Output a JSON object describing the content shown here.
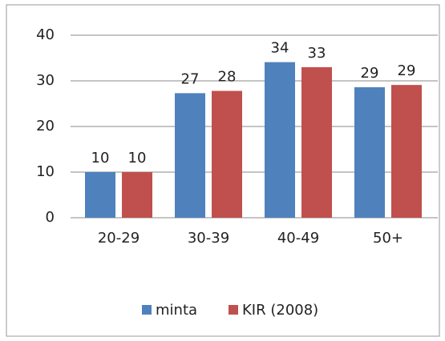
{
  "chart_data": {
    "type": "bar",
    "categories": [
      "20-29",
      "30-39",
      "40-49",
      "50+"
    ],
    "series": [
      {
        "name": "minta",
        "color": "#4f81bd",
        "values": [
          10,
          27.3,
          34.1,
          28.6
        ],
        "value_labels": [
          "10",
          "27",
          "34",
          "29"
        ]
      },
      {
        "name": "KIR (2008)",
        "color": "#c0504d",
        "values": [
          10,
          27.8,
          33,
          29.1
        ],
        "value_labels": [
          "10",
          "28",
          "33",
          "29"
        ]
      }
    ],
    "ylim": [
      0,
      40
    ],
    "yticks": [
      0,
      10,
      20,
      30,
      40
    ],
    "grid": true,
    "legend": "bottom"
  }
}
